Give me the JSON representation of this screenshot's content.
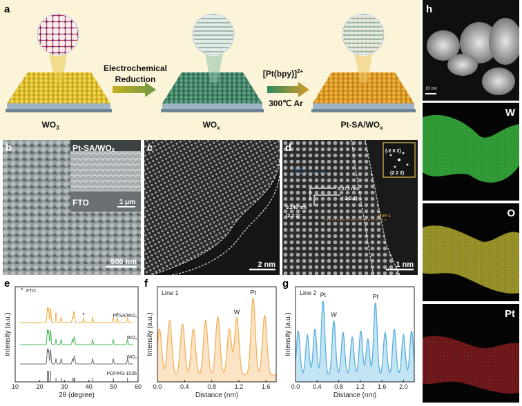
{
  "panels": {
    "a": "a",
    "b": "b",
    "c": "c",
    "d": "d",
    "e": "e",
    "f": "f",
    "g": "g",
    "h": "h"
  },
  "schematic": {
    "step1_line1": "Electrochemical",
    "step1_line2": "Reduction",
    "step2_line1": "[Pt(bpy)]",
    "step2_sup": "2+",
    "step2_line2": "300℃ Ar",
    "label_wo3": "WO",
    "label_wo3_sub": "3",
    "label_wox": "WO",
    "label_wox_sub": "x",
    "label_pt_main": "Pt-SA/WO",
    "label_pt_sub": "x"
  },
  "sem_b": {
    "inset_title": "Pt-SA/WOₓ",
    "inset_substrate": "FTO",
    "inset_scale": "1 μm",
    "scale": "500 nm"
  },
  "haadf_c": {
    "scale": "2 nm"
  },
  "haadf_d": {
    "line2": "Line 2",
    "line1": "Line 1",
    "d1": "0.273 nm",
    "d1_hkl": "(-2 0 2)",
    "d2": "0.249 nm",
    "d2_hkl": "(2 2 2)",
    "fft_a": "(-2 0 2)",
    "fft_b": "(2 2 2)",
    "scale": "1 nm"
  },
  "eds_h": {
    "scale": "10 nm",
    "maps": [
      "W",
      "O",
      "Pt"
    ],
    "colors": {
      "W": "#39c43a",
      "O": "#d8d030",
      "Pt": "#d8262a"
    }
  },
  "chart_data": [
    {
      "id": "e",
      "type": "line",
      "title": "",
      "xlabel": "2θ (degree)",
      "ylabel": "Intensity (a.u.)",
      "xlim": [
        10,
        60
      ],
      "xticks": [
        "10",
        "20",
        "30",
        "40",
        "50",
        "60"
      ],
      "legend": [
        "FTO"
      ],
      "marker_positions": [
        37.8,
        51.6
      ],
      "series": [
        {
          "name": "Pt-SA/WOₓ",
          "color": "#f1ab40"
        },
        {
          "name": "WOₓ",
          "color": "#46b85a"
        },
        {
          "name": "WO₃",
          "color": "#6c6c6c"
        },
        {
          "name": "PDF#43-1035",
          "color": "#555555",
          "sticks": [
            23.1,
            23.6,
            24.4,
            26.6,
            28.7,
            33.3,
            33.9,
            34.2,
            41.5,
            49.9,
            55.7
          ]
        }
      ]
    },
    {
      "id": "f",
      "type": "area",
      "title": "Line 1",
      "xlabel": "Distance (nm)",
      "ylabel": "Intensity (a.u.)",
      "xlim": [
        0,
        1.75
      ],
      "xticks": [
        "0.0",
        "0.4",
        "0.8",
        "1.2",
        "1.6"
      ],
      "color": "#f3b05a",
      "annotations": [
        {
          "text": "W",
          "x": 1.17
        },
        {
          "text": "Pt",
          "x": 1.41
        }
      ],
      "peaks": [
        [
          0.03,
          0.62
        ],
        [
          0.18,
          0.72
        ],
        [
          0.37,
          0.68
        ],
        [
          0.53,
          0.62
        ],
        [
          0.71,
          0.72
        ],
        [
          0.89,
          0.76
        ],
        [
          1.06,
          0.62
        ],
        [
          1.17,
          0.75
        ],
        [
          1.41,
          0.98
        ],
        [
          1.58,
          0.78
        ]
      ]
    },
    {
      "id": "g",
      "type": "area",
      "title": "Line 2",
      "xlabel": "Distance (nm)",
      "ylabel": "Intensity (a.u.)",
      "xlim": [
        0,
        2.2
      ],
      "xticks": [
        "0.0",
        "0.4",
        "0.8",
        "1.2",
        "1.6",
        "2.0"
      ],
      "color": "#55b0de",
      "annotations": [
        {
          "text": "Pt",
          "x": 0.51
        },
        {
          "text": "W",
          "x": 0.71
        },
        {
          "text": "Pt",
          "x": 1.48
        }
      ],
      "peaks": [
        [
          0.05,
          0.6
        ],
        [
          0.22,
          0.55
        ],
        [
          0.36,
          0.62
        ],
        [
          0.51,
          0.95
        ],
        [
          0.71,
          0.72
        ],
        [
          0.88,
          0.58
        ],
        [
          1.05,
          0.52
        ],
        [
          1.21,
          0.6
        ],
        [
          1.34,
          0.5
        ],
        [
          1.48,
          0.93
        ],
        [
          1.66,
          0.58
        ],
        [
          1.83,
          0.62
        ],
        [
          2.0,
          0.55
        ],
        [
          2.15,
          0.6
        ]
      ]
    }
  ]
}
